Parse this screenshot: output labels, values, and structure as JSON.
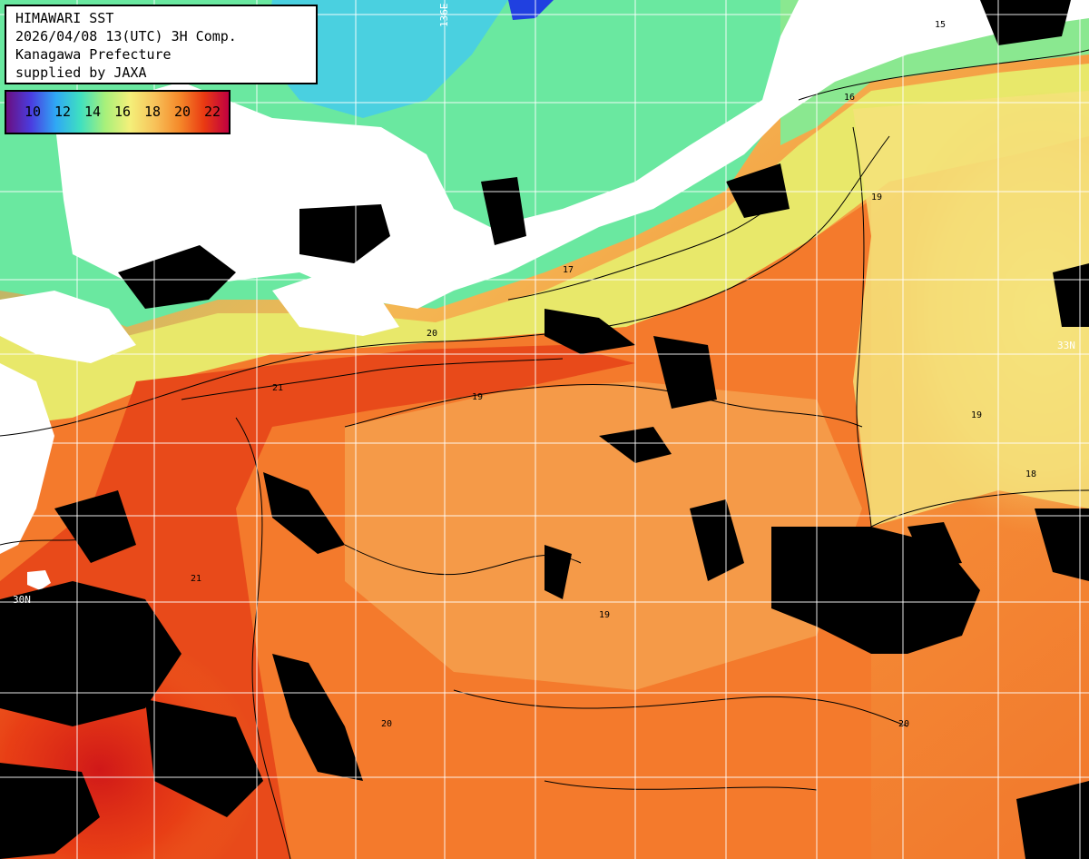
{
  "header": {
    "lines": [
      "HIMAWARI SST",
      "2026/04/08 13(UTC) 3H Comp.",
      "Kanagawa Prefecture",
      "supplied by JAXA"
    ]
  },
  "legend": {
    "labels": [
      "10",
      "12",
      "14",
      "16",
      "18",
      "20",
      "22"
    ],
    "stops": [
      "#6a0f80",
      "#4a3de0",
      "#2fa8f5",
      "#3fe0c0",
      "#a8f07a",
      "#f4f07a",
      "#f7c25a",
      "#f58a2a",
      "#ea3a12",
      "#c00040"
    ]
  },
  "grid": {
    "lon_labels": [
      "136E"
    ],
    "lat_labels": [
      "33N",
      "30N",
      "33N"
    ]
  },
  "contour_labels": [
    "15",
    "16",
    "17",
    "18",
    "19",
    "20",
    "21"
  ],
  "colors": {
    "land": "#ffffff",
    "cloud_mask": "#000000",
    "grid": "#ffffff",
    "contour": "#000000"
  }
}
